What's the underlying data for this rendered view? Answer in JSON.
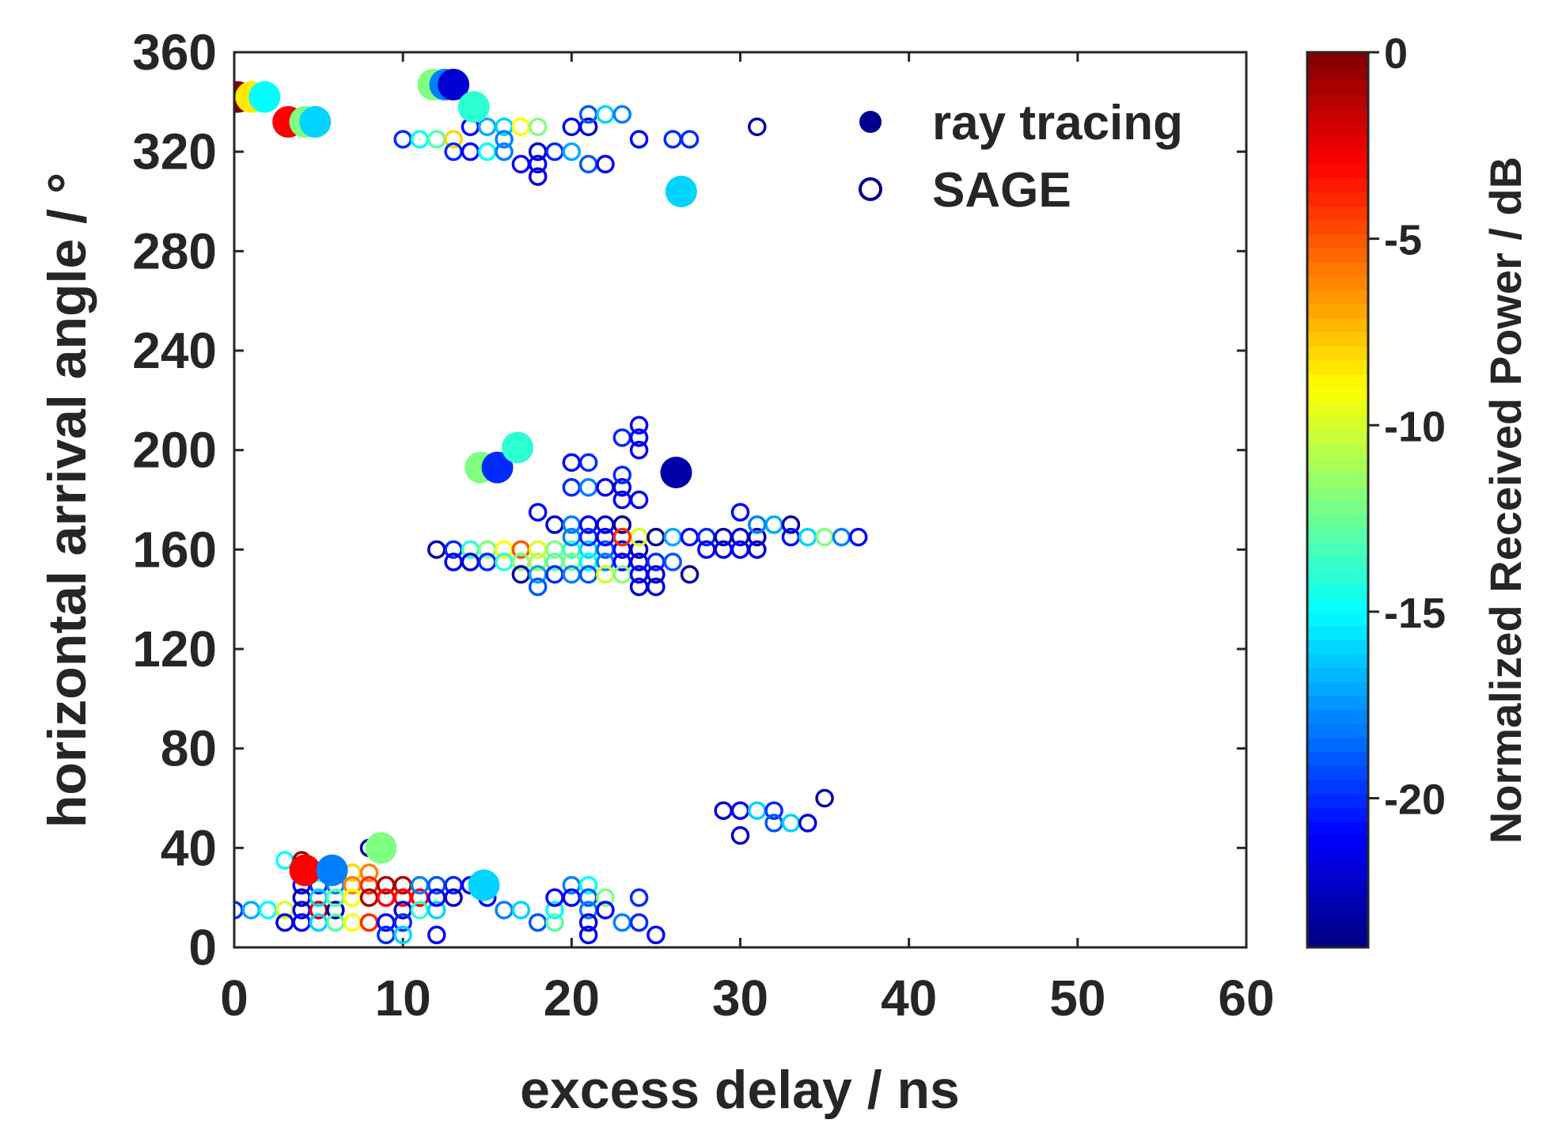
{
  "chart_data": {
    "type": "scatter",
    "xlabel": "excess delay / ns",
    "ylabel": "horizontal arrival angle / °",
    "xlim": [
      0,
      60
    ],
    "ylim": [
      0,
      360
    ],
    "xticks": [
      "0",
      "10",
      "20",
      "30",
      "40",
      "50",
      "60"
    ],
    "yticks": [
      "0",
      "40",
      "80",
      "120",
      "160",
      "200",
      "240",
      "280",
      "320",
      "360"
    ],
    "legend": {
      "placement": "top-right",
      "entries": [
        {
          "label": "ray tracing",
          "marker": "filled-circle"
        },
        {
          "label": "SAGE",
          "marker": "open-circle"
        }
      ]
    },
    "colorbar": {
      "label": "Normalized Received Power / dB",
      "range": [
        -24,
        0
      ],
      "ticks": [
        "0",
        "-5",
        "-10",
        "-15",
        "-20"
      ],
      "colormap": "jet"
    },
    "series": [
      {
        "name": "ray tracing",
        "marker": "filled",
        "points": [
          [
            0.2,
            342,
            0
          ],
          [
            1.0,
            342,
            -8.5
          ],
          [
            1.8,
            342,
            -15
          ],
          [
            3.2,
            332,
            -3
          ],
          [
            4.2,
            332,
            -12
          ],
          [
            4.8,
            332,
            -16
          ],
          [
            11.8,
            347,
            -12
          ],
          [
            12.5,
            347,
            -18
          ],
          [
            13.0,
            347,
            -22
          ],
          [
            14.2,
            338,
            -14
          ],
          [
            26.5,
            304,
            -16
          ],
          [
            14.6,
            193,
            -12
          ],
          [
            15.6,
            193,
            -20
          ],
          [
            16.8,
            201,
            -14
          ],
          [
            26.2,
            191,
            -23
          ],
          [
            4.2,
            31,
            -3
          ],
          [
            5.8,
            31,
            -18
          ],
          [
            8.7,
            40,
            -12
          ],
          [
            14.8,
            25,
            -16
          ]
        ]
      },
      {
        "name": "SAGE",
        "marker": "open",
        "points": [
          [
            10,
            325,
            -20
          ],
          [
            11,
            325,
            -15
          ],
          [
            12,
            325,
            -13
          ],
          [
            13,
            325,
            -8
          ],
          [
            14,
            330,
            -21
          ],
          [
            15,
            330,
            -17
          ],
          [
            16,
            330,
            -16
          ],
          [
            17,
            330,
            -9
          ],
          [
            18,
            330,
            -12
          ],
          [
            13,
            320,
            -20
          ],
          [
            14,
            320,
            -21
          ],
          [
            15,
            320,
            -15
          ],
          [
            16,
            320,
            -18
          ],
          [
            17,
            315,
            -21
          ],
          [
            18,
            315,
            -21
          ],
          [
            18,
            310,
            -22
          ],
          [
            18,
            320,
            -22
          ],
          [
            19,
            320,
            -20
          ],
          [
            20,
            320,
            -17
          ],
          [
            20,
            330,
            -21
          ],
          [
            21,
            330,
            -22
          ],
          [
            21,
            335,
            -19
          ],
          [
            22,
            335,
            -16
          ],
          [
            23,
            335,
            -18
          ],
          [
            16,
            325,
            -18
          ],
          [
            21,
            315,
            -19
          ],
          [
            22,
            315,
            -21
          ],
          [
            24,
            325,
            -21
          ],
          [
            26,
            325,
            -20
          ],
          [
            27,
            325,
            -20
          ],
          [
            31,
            330,
            -23
          ],
          [
            23,
            205,
            -20
          ],
          [
            24,
            210,
            -21
          ],
          [
            24,
            205,
            -21
          ],
          [
            24,
            200,
            -21
          ],
          [
            20,
            195,
            -21
          ],
          [
            21,
            195,
            -20
          ],
          [
            20,
            185,
            -20
          ],
          [
            21,
            185,
            -18
          ],
          [
            22,
            185,
            -21
          ],
          [
            23,
            185,
            -22
          ],
          [
            23,
            190,
            -20
          ],
          [
            23,
            180,
            -21
          ],
          [
            24,
            180,
            -21
          ],
          [
            18,
            175,
            -21
          ],
          [
            19,
            170,
            -22
          ],
          [
            20,
            170,
            -18
          ],
          [
            21,
            170,
            -21
          ],
          [
            22,
            170,
            -22
          ],
          [
            23,
            170,
            -23
          ],
          [
            12,
            160,
            -23
          ],
          [
            13,
            160,
            -20
          ],
          [
            14,
            160,
            -14
          ],
          [
            15,
            160,
            -12
          ],
          [
            16,
            160,
            -9
          ],
          [
            17,
            160,
            -5
          ],
          [
            18,
            160,
            -10
          ],
          [
            19,
            160,
            -12
          ],
          [
            20,
            160,
            -14
          ],
          [
            21,
            160,
            -16
          ],
          [
            22,
            160,
            -19
          ],
          [
            23,
            160,
            -21
          ],
          [
            24,
            160,
            -23
          ],
          [
            13,
            155,
            -21
          ],
          [
            14,
            155,
            -22
          ],
          [
            15,
            155,
            -20
          ],
          [
            16,
            155,
            -14
          ],
          [
            17,
            155,
            -12
          ],
          [
            18,
            155,
            -11
          ],
          [
            19,
            155,
            -13
          ],
          [
            20,
            155,
            -12
          ],
          [
            21,
            155,
            -15
          ],
          [
            22,
            155,
            -18
          ],
          [
            23,
            155,
            -21
          ],
          [
            24,
            155,
            -22
          ],
          [
            25,
            155,
            -20
          ],
          [
            26,
            155,
            -19
          ],
          [
            17,
            150,
            -23
          ],
          [
            18,
            150,
            -17
          ],
          [
            19,
            150,
            -20
          ],
          [
            20,
            150,
            -18
          ],
          [
            21,
            150,
            -19
          ],
          [
            22,
            150,
            -10
          ],
          [
            23,
            150,
            -12
          ],
          [
            24,
            150,
            -21
          ],
          [
            25,
            150,
            -22
          ],
          [
            27,
            150,
            -23
          ],
          [
            18,
            145,
            -19
          ],
          [
            24,
            145,
            -22
          ],
          [
            25,
            145,
            -22
          ],
          [
            20,
            165,
            -18
          ],
          [
            21,
            165,
            -20
          ],
          [
            22,
            165,
            -21
          ],
          [
            23,
            165,
            -6
          ],
          [
            24,
            165,
            -10
          ],
          [
            25,
            165,
            -24
          ],
          [
            26,
            165,
            -17
          ],
          [
            27,
            165,
            -21
          ],
          [
            28,
            165,
            -20
          ],
          [
            29,
            165,
            -23
          ],
          [
            30,
            165,
            -22
          ],
          [
            31,
            165,
            -23
          ],
          [
            32,
            170,
            -17
          ],
          [
            33,
            170,
            -23
          ],
          [
            33,
            165,
            -21
          ],
          [
            34,
            165,
            -16
          ],
          [
            35,
            165,
            -12
          ],
          [
            36,
            165,
            -18
          ],
          [
            37,
            165,
            -21
          ],
          [
            23,
            165,
            -4
          ],
          [
            28,
            160,
            -21
          ],
          [
            29,
            160,
            -22
          ],
          [
            30,
            160,
            -21
          ],
          [
            31,
            160,
            -22
          ],
          [
            30,
            175,
            -21
          ],
          [
            31,
            170,
            -18
          ],
          [
            29,
            55,
            -22
          ],
          [
            30,
            55,
            -21
          ],
          [
            31,
            55,
            -16
          ],
          [
            32,
            55,
            -20
          ],
          [
            32,
            50,
            -19
          ],
          [
            33,
            50,
            -16
          ],
          [
            34,
            50,
            -22
          ],
          [
            35,
            60,
            -23
          ],
          [
            30,
            45,
            -22
          ],
          [
            0,
            15,
            -20
          ],
          [
            1,
            15,
            -17
          ],
          [
            2,
            15,
            -15
          ],
          [
            3,
            15,
            -10
          ],
          [
            4,
            15,
            -21
          ],
          [
            5,
            15,
            -2
          ],
          [
            6,
            15,
            -23
          ],
          [
            3,
            10,
            -22
          ],
          [
            4,
            10,
            -21
          ],
          [
            5,
            10,
            -16
          ],
          [
            6,
            10,
            -13
          ],
          [
            7,
            10,
            -9
          ],
          [
            8,
            10,
            -4
          ],
          [
            3,
            35,
            -15
          ],
          [
            4,
            35,
            -0.5
          ],
          [
            4,
            30,
            -15
          ],
          [
            5,
            30,
            -14
          ],
          [
            6,
            30,
            -12
          ],
          [
            7,
            30,
            -8
          ],
          [
            8,
            30,
            -6
          ],
          [
            4,
            25,
            -21
          ],
          [
            5,
            25,
            -20
          ],
          [
            6,
            25,
            -18
          ],
          [
            7,
            25,
            -6
          ],
          [
            8,
            25,
            -4
          ],
          [
            9,
            25,
            -1
          ],
          [
            10,
            25,
            -1
          ],
          [
            4,
            20,
            -23
          ],
          [
            5,
            20,
            -16
          ],
          [
            6,
            20,
            -13
          ],
          [
            7,
            20,
            -9
          ],
          [
            8,
            20,
            -1
          ],
          [
            9,
            20,
            -3
          ],
          [
            10,
            20,
            -3
          ],
          [
            11,
            20,
            -3
          ],
          [
            10,
            15,
            -22
          ],
          [
            11,
            15,
            -14
          ],
          [
            12,
            15,
            -16
          ],
          [
            8,
            40,
            -23
          ],
          [
            9,
            10,
            -21
          ],
          [
            9,
            5,
            -20
          ],
          [
            10,
            10,
            -20
          ],
          [
            10,
            5,
            -16
          ],
          [
            12,
            5,
            -21
          ],
          [
            11,
            25,
            -18
          ],
          [
            12,
            25,
            -19
          ],
          [
            13,
            25,
            -20
          ],
          [
            14,
            25,
            -21
          ],
          [
            12,
            20,
            -21
          ],
          [
            13,
            20,
            -22
          ],
          [
            15,
            20,
            -21
          ],
          [
            16,
            15,
            -18
          ],
          [
            17,
            15,
            -16
          ],
          [
            18,
            10,
            -19
          ],
          [
            19,
            10,
            -13
          ],
          [
            19,
            15,
            -15
          ],
          [
            19,
            20,
            -21
          ],
          [
            20,
            25,
            -18
          ],
          [
            21,
            25,
            -15
          ],
          [
            20,
            20,
            -21
          ],
          [
            21,
            20,
            -19
          ],
          [
            22,
            20,
            -12
          ],
          [
            21,
            15,
            -18
          ],
          [
            22,
            15,
            -21
          ],
          [
            21,
            10,
            -22
          ],
          [
            21,
            5,
            -21
          ],
          [
            23,
            10,
            -18
          ],
          [
            24,
            10,
            -20
          ],
          [
            25,
            5,
            -21
          ],
          [
            24,
            20,
            -20
          ]
        ]
      }
    ]
  }
}
